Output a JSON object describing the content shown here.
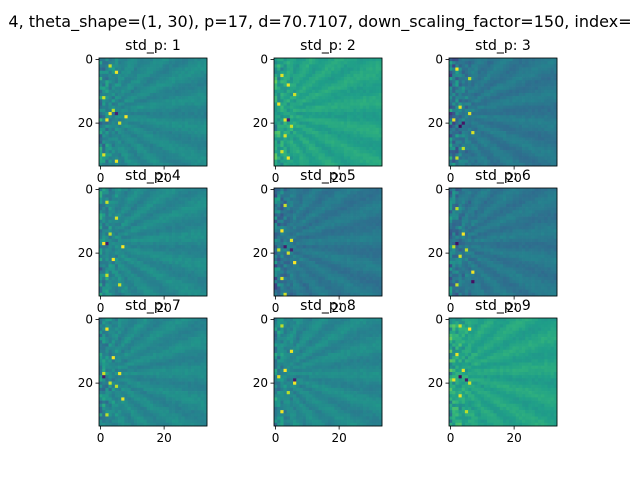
{
  "figure": {
    "suptitle": "4, theta_shape=(1, 30), p=17, d=70.7107, down_scaling_factor=150, index="
  },
  "chart_data": [
    {
      "type": "heatmap",
      "title": "std_p: 1",
      "size": 34,
      "xticks": [
        0,
        20
      ],
      "yticks": [
        0,
        20
      ],
      "tone": "teal",
      "noise": 0.35,
      "seed": 11,
      "hot_points": [
        [
          3,
          2
        ],
        [
          5,
          4
        ],
        [
          1,
          12
        ],
        [
          4,
          16
        ],
        [
          2,
          19
        ],
        [
          6,
          20
        ],
        [
          1,
          30
        ],
        [
          5,
          32
        ],
        [
          8,
          18
        ],
        [
          3,
          17
        ]
      ],
      "cold_points": [
        [
          5,
          17
        ]
      ]
    },
    {
      "type": "heatmap",
      "title": "std_p: 2",
      "size": 34,
      "xticks": [
        0,
        20
      ],
      "yticks": [
        0,
        20
      ],
      "tone": "green",
      "noise": 0.3,
      "seed": 23,
      "hot_points": [
        [
          2,
          5
        ],
        [
          4,
          8
        ],
        [
          1,
          14
        ],
        [
          3,
          19
        ],
        [
          5,
          21
        ],
        [
          2,
          29
        ],
        [
          4,
          31
        ],
        [
          6,
          11
        ],
        [
          3,
          24
        ]
      ],
      "cold_points": [
        [
          4,
          19
        ]
      ]
    },
    {
      "type": "heatmap",
      "title": "std_p: 3",
      "size": 34,
      "xticks": [
        0,
        20
      ],
      "yticks": [
        0,
        20
      ],
      "tone": "blue",
      "noise": 0.45,
      "seed": 37,
      "hot_points": [
        [
          2,
          3
        ],
        [
          6,
          6
        ],
        [
          3,
          15
        ],
        [
          1,
          19
        ],
        [
          7,
          23
        ],
        [
          4,
          28
        ],
        [
          2,
          31
        ],
        [
          6,
          17
        ]
      ],
      "cold_points": [
        [
          4,
          20
        ],
        [
          3,
          21
        ]
      ]
    },
    {
      "type": "heatmap",
      "title": "std_p: 4",
      "size": 34,
      "xticks": [
        0,
        20
      ],
      "yticks": [
        0,
        20
      ],
      "tone": "teal",
      "noise": 0.3,
      "seed": 41,
      "hot_points": [
        [
          2,
          4
        ],
        [
          5,
          9
        ],
        [
          3,
          14
        ],
        [
          1,
          17
        ],
        [
          7,
          18
        ],
        [
          4,
          22
        ],
        [
          2,
          27
        ],
        [
          6,
          30
        ]
      ],
      "cold_points": [
        [
          2,
          17
        ]
      ]
    },
    {
      "type": "heatmap",
      "title": "std_p: 5",
      "size": 34,
      "xticks": [
        0,
        20
      ],
      "yticks": [
        0,
        20
      ],
      "tone": "blue",
      "noise": 0.35,
      "seed": 53,
      "hot_points": [
        [
          3,
          5
        ],
        [
          2,
          13
        ],
        [
          5,
          16
        ],
        [
          1,
          19
        ],
        [
          4,
          20
        ],
        [
          6,
          23
        ],
        [
          2,
          28
        ],
        [
          3,
          33
        ]
      ],
      "cold_points": [
        [
          3,
          18
        ],
        [
          5,
          19
        ]
      ]
    },
    {
      "type": "heatmap",
      "title": "std_p: 6",
      "size": 34,
      "xticks": [
        0,
        20
      ],
      "yticks": [
        0,
        20
      ],
      "tone": "blue",
      "noise": 0.35,
      "seed": 67,
      "hot_points": [
        [
          2,
          6
        ],
        [
          4,
          14
        ],
        [
          1,
          18
        ],
        [
          5,
          19
        ],
        [
          3,
          21
        ],
        [
          7,
          26
        ],
        [
          2,
          30
        ]
      ],
      "cold_points": [
        [
          7,
          29
        ],
        [
          2,
          17
        ]
      ]
    },
    {
      "type": "heatmap",
      "title": "std_p: 7",
      "size": 34,
      "xticks": [
        0,
        20
      ],
      "yticks": [
        0,
        20
      ],
      "tone": "teal",
      "noise": 0.3,
      "seed": 71,
      "hot_points": [
        [
          2,
          3
        ],
        [
          4,
          12
        ],
        [
          1,
          17
        ],
        [
          6,
          17
        ],
        [
          3,
          20
        ],
        [
          5,
          21
        ],
        [
          7,
          25
        ],
        [
          2,
          30
        ]
      ],
      "cold_points": [
        [
          1,
          18
        ]
      ]
    },
    {
      "type": "heatmap",
      "title": "std_p: 8",
      "size": 34,
      "xticks": [
        0,
        20
      ],
      "yticks": [
        0,
        20
      ],
      "tone": "teal",
      "noise": 0.3,
      "seed": 83,
      "hot_points": [
        [
          2,
          2
        ],
        [
          5,
          10
        ],
        [
          3,
          16
        ],
        [
          1,
          18
        ],
        [
          6,
          20
        ],
        [
          4,
          23
        ],
        [
          2,
          29
        ]
      ],
      "cold_points": [
        [
          6,
          19
        ]
      ]
    },
    {
      "type": "heatmap",
      "title": "std_p: 9",
      "size": 34,
      "xticks": [
        0,
        20
      ],
      "yticks": [
        0,
        20
      ],
      "tone": "green",
      "noise": 0.35,
      "seed": 97,
      "hot_points": [
        [
          3,
          2
        ],
        [
          6,
          3
        ],
        [
          2,
          11
        ],
        [
          4,
          16
        ],
        [
          1,
          19
        ],
        [
          6,
          20
        ],
        [
          3,
          24
        ],
        [
          5,
          29
        ]
      ],
      "cold_points": [
        [
          3,
          18
        ],
        [
          5,
          19
        ]
      ]
    }
  ]
}
